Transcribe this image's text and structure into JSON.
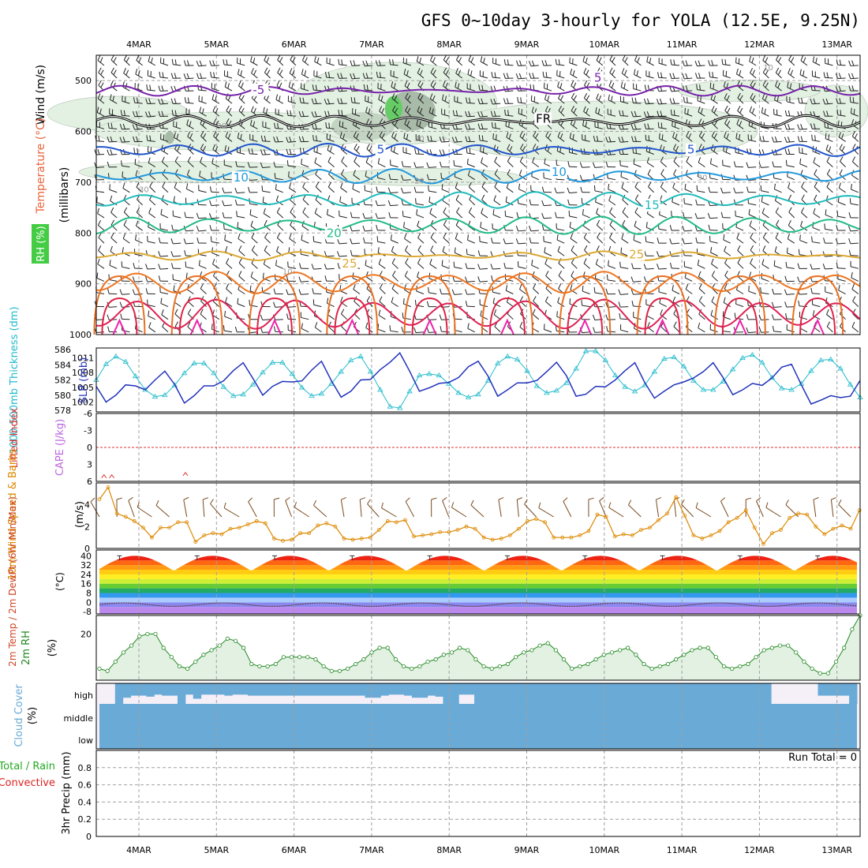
{
  "title": "GFS 0~10day 3-hourly for YOLA (12.5E, 9.25N)",
  "dates": [
    "4MAR",
    "5MAR",
    "6MAR",
    "7MAR",
    "8MAR",
    "9MAR",
    "10MAR",
    "11MAR",
    "12MAR",
    "13MAR"
  ],
  "colors": {
    "wind_label": "#000000",
    "temp_label": "#e8643c",
    "rh_label": "#2db82d",
    "slp": "#2233bb",
    "thickness": "#22bbcc",
    "lifted": "#dd3333",
    "cape": "#bb66dd",
    "wind10": "#dd8800",
    "barb10": "#7a4a1e",
    "rh2m": "#228822",
    "cloud": "#6aaad6",
    "precip_total": "#22aa22",
    "precip_conv": "#dd2222"
  },
  "chart_data": [
    {
      "type": "contour",
      "panel": "upper_air",
      "ylabel": "(millibars)",
      "side_labels": {
        "wind": "Wind (m/s)",
        "temperature": "Temperature (°C)",
        "rh": "RH (%)"
      },
      "yticks": [
        500,
        600,
        700,
        800,
        900,
        1000
      ],
      "ylim": [
        450,
        1000
      ],
      "temperature_contours": [
        {
          "value": -5,
          "label": "-5",
          "color": "#7722aa",
          "base_mb": 520
        },
        {
          "value": 0,
          "label": "FR",
          "color": "#000000",
          "base_mb": 580
        },
        {
          "value": 5,
          "label": "5",
          "color": "#2255cc",
          "base_mb": 637
        },
        {
          "value": 10,
          "label": "10",
          "color": "#2299dd",
          "base_mb": 688
        },
        {
          "value": 15,
          "label": "15",
          "color": "#22bbbb",
          "base_mb": 735
        },
        {
          "value": 20,
          "label": "20",
          "color": "#22bb88",
          "base_mb": 785
        },
        {
          "value": 25,
          "label": "25",
          "color": "#ddaa33",
          "base_mb": 840
        },
        {
          "value": 30,
          "label": "",
          "color": "#ee7722",
          "base_mb": 880
        },
        {
          "value": 35,
          "label": "",
          "color": "#dd2255",
          "base_mb": 935
        }
      ],
      "temperature_labels": [
        {
          "text": "-5",
          "day": 1.55,
          "mb": 518,
          "color": "#7722aa"
        },
        {
          "text": "5",
          "day": 5.95,
          "mb": 494,
          "color": "#7722aa"
        },
        {
          "text": "FR",
          "day": 5.2,
          "mb": 575,
          "color": "#000000"
        },
        {
          "text": "5",
          "day": 3.15,
          "mb": 636,
          "color": "#2255cc"
        },
        {
          "text": "5",
          "day": 7.15,
          "mb": 636,
          "color": "#2255cc"
        },
        {
          "text": "10",
          "day": 1.3,
          "mb": 691,
          "color": "#2299dd"
        },
        {
          "text": "10",
          "day": 5.4,
          "mb": 680,
          "color": "#2299dd"
        },
        {
          "text": "15",
          "day": 6.6,
          "mb": 745,
          "color": "#22bbbb"
        },
        {
          "text": "20",
          "day": 2.5,
          "mb": 800,
          "color": "#22bb88"
        },
        {
          "text": "25",
          "day": 2.7,
          "mb": 860,
          "color": "#ddaa33"
        },
        {
          "text": "25",
          "day": 6.4,
          "mb": 842,
          "color": "#ddaa33"
        }
      ],
      "rh_labels": [
        {
          "text": "30",
          "day": 1.0,
          "mb": 588
        },
        {
          "text": "30",
          "day": 0.0,
          "mb": 713
        },
        {
          "text": "30",
          "day": 3.55,
          "mb": 613
        },
        {
          "text": "20",
          "day": 3.55,
          "mb": 696
        },
        {
          "text": "30",
          "day": 7.2,
          "mb": 690
        },
        {
          "text": "10",
          "day": 1.85,
          "mb": 875
        },
        {
          "text": "10",
          "day": 8.05,
          "mb": 473
        }
      ]
    },
    {
      "type": "line",
      "panel": "slp_thickness",
      "ylabel_left": "1000-500mb Thickness (dm)",
      "ylabel_right": "SLP (mb)",
      "y_ticks_thickness": [
        578,
        580,
        582,
        584,
        586
      ],
      "y_ticks_slp": [
        1002,
        1005,
        1008,
        1011
      ],
      "ylim_thickness": [
        578,
        586
      ],
      "ylim_slp": [
        1000,
        1013
      ],
      "series": [
        {
          "name": "1000-500mb Thickness (dm)",
          "values": [
            582.0,
            584.1,
            585.1,
            584.4,
            582.5,
            580.7,
            579.8,
            580.0,
            581.3,
            582.9,
            584.2,
            584.2,
            582.9,
            581.1,
            579.9,
            580.1,
            581.4,
            583.0,
            584.3,
            584.3,
            582.8,
            581.0,
            579.9,
            580.2,
            581.5,
            583.1,
            584.6,
            585.1,
            583.1,
            580.7,
            578.5,
            578.3,
            580.5,
            582.6,
            582.8,
            582.6,
            581.5,
            580.3,
            579.7,
            580.1,
            581.9,
            584.2,
            585.1,
            584.7,
            583.2,
            581.2,
            580.3,
            580.6,
            581.6,
            583.5,
            585.8,
            585.8,
            584.6,
            582.6,
            581.1,
            580.5,
            581.3,
            583.1,
            584.8,
            585.0,
            583.8,
            581.9,
            580.7,
            580.7,
            581.8,
            583.4,
            584.9,
            585.3,
            584.3,
            582.3,
            580.9,
            580.7,
            581.5,
            583.2,
            584.6,
            584.7,
            583.5,
            581.4,
            579.7
          ]
        },
        {
          "name": "SLP (mb)",
          "values": [
            1005.2,
            1002.0,
            1003.4,
            1005.5,
            1005.3,
            1004.5,
            1006.5,
            1008.3,
            1005.6,
            1001.8,
            1003.3,
            1005.3,
            1005.3,
            1006.3,
            1008.4,
            1010.0,
            1006.8,
            1003.4,
            1005.2,
            1006.2,
            1006.1,
            1006.3,
            1008.5,
            1010.3,
            1006.4,
            1003.0,
            1004.2,
            1006.5,
            1006.6,
            1008.6,
            1010.1,
            1012.0,
            1008.3,
            1004.2,
            1004.9,
            1005.8,
            1006.0,
            1007.0,
            1009.2,
            1010.3,
            1007.3,
            1003.2,
            1004.5,
            1005.9,
            1005.9,
            1006.4,
            1008.2,
            1010.1,
            1007.4,
            1003.2,
            1003.6,
            1005.2,
            1005.1,
            1006.5,
            1008.4,
            1010.0,
            1006.0,
            1002.8,
            1004.2,
            1005.5,
            1006.1,
            1006.9,
            1008.2,
            1010.0,
            1007.0,
            1003.5,
            1004.5,
            1005.8,
            1005.4,
            1006.9,
            1009.1,
            1009.7,
            1005.5,
            1001.6,
            1002.4,
            1003.3,
            1002.9,
            1003.2,
            1006.4
          ]
        }
      ]
    },
    {
      "type": "line",
      "panel": "lifted_cape",
      "ylabel_left": "Lifted Index",
      "ylabel_right": "CAPE (J/kg)",
      "yticks": [
        -6,
        -3,
        0,
        3,
        6
      ],
      "ylim": [
        -6,
        6
      ],
      "zero_line": 0,
      "cape_markers": [
        {
          "day": -0.45,
          "value": 5.4
        },
        {
          "day": -0.35,
          "value": 5.4
        },
        {
          "day": 0.6,
          "value": 5.0
        }
      ]
    },
    {
      "type": "line",
      "panel": "wind10",
      "ylabel_left": "10m Wind Speed & Barbs",
      "ylabel_right": "(m/s)",
      "yticks": [
        0,
        2,
        4
      ],
      "ylim": [
        0,
        6
      ],
      "series": [
        {
          "name": "10m Wind Speed",
          "values": [
            4.5,
            5.6,
            3.2,
            2.9,
            2.5,
            1.9,
            1.0,
            1.9,
            1.9,
            2.4,
            2.4,
            0.6,
            1.2,
            1.4,
            1.3,
            1.8,
            1.9,
            2.2,
            2.5,
            2.3,
            0.9,
            0.7,
            0.8,
            1.4,
            1.4,
            2.1,
            2.3,
            2.0,
            0.9,
            0.8,
            0.9,
            1.0,
            1.7,
            2.5,
            2.4,
            2.6,
            1.1,
            1.2,
            1.3,
            1.5,
            1.5,
            1.7,
            2.0,
            1.8,
            1.0,
            0.8,
            0.9,
            1.2,
            1.8,
            2.5,
            2.7,
            2.4,
            1.0,
            1.0,
            1.0,
            1.2,
            1.6,
            3.1,
            2.9,
            1.1,
            1.3,
            1.2,
            1.7,
            1.9,
            2.6,
            3.2,
            4.7,
            3.0,
            1.2,
            0.9,
            1.2,
            1.6,
            2.4,
            2.8,
            3.5,
            1.9,
            0.4,
            1.4,
            1.7,
            2.8,
            3.2,
            3.1,
            2.0,
            1.3,
            1.8,
            2.1,
            1.8,
            3.5
          ]
        }
      ]
    },
    {
      "type": "area",
      "panel": "temp2m",
      "ylabel": "2m Temp / 2m DewPt (6hr Min/Max)",
      "yunit": "(°C)",
      "yticks": [
        -8,
        0,
        8,
        16,
        24,
        32,
        40
      ],
      "ylim": [
        -10,
        45
      ],
      "temperature_daily": {
        "min": 27,
        "max": 40
      },
      "dewpoint_base": -2,
      "color_bands": [
        {
          "from": -10,
          "to": -4,
          "color": "#bb88ee"
        },
        {
          "from": -4,
          "to": 0,
          "color": "#8888ee"
        },
        {
          "from": 0,
          "to": 4,
          "color": "#aaccff"
        },
        {
          "from": 4,
          "to": 8,
          "color": "#3399ee"
        },
        {
          "from": 8,
          "to": 12,
          "color": "#22aa66"
        },
        {
          "from": 12,
          "to": 16,
          "color": "#66cc33"
        },
        {
          "from": 16,
          "to": 20,
          "color": "#ccee33"
        },
        {
          "from": 20,
          "to": 24,
          "color": "#ffee22"
        },
        {
          "from": 24,
          "to": 28,
          "color": "#ffcc11"
        },
        {
          "from": 28,
          "to": 32,
          "color": "#ff9911"
        },
        {
          "from": 32,
          "to": 36,
          "color": "#ff6611"
        },
        {
          "from": 36,
          "to": 40,
          "color": "#ee2211"
        },
        {
          "from": 40,
          "to": 45,
          "color": "#aa1111"
        }
      ]
    },
    {
      "type": "line",
      "panel": "rh2m",
      "ylabel": "2m RH",
      "yunit": "(%)",
      "yticks": [
        20
      ],
      "ylim": [
        0,
        28
      ],
      "series": [
        {
          "name": "2m RH",
          "values": [
            5,
            4,
            8,
            12,
            15,
            19,
            20,
            20,
            14,
            10,
            6,
            5,
            8,
            11,
            13,
            15,
            18,
            17,
            14,
            7,
            6,
            6,
            7,
            10,
            10,
            10,
            10,
            9,
            6,
            4,
            4,
            5,
            7,
            9,
            12,
            14,
            14,
            9,
            6,
            5,
            6,
            8,
            9,
            11,
            12,
            14,
            13,
            9,
            6,
            5,
            6,
            7,
            10,
            12,
            13,
            15,
            16,
            13,
            9,
            5,
            6,
            7,
            9,
            11,
            12,
            13,
            14,
            11,
            7,
            5,
            6,
            7,
            9,
            11,
            13,
            14,
            14,
            10,
            6,
            5,
            6,
            7,
            10,
            13,
            14,
            15,
            15,
            12,
            8,
            5,
            3,
            3,
            8,
            14,
            22,
            28
          ]
        }
      ]
    },
    {
      "type": "area",
      "panel": "cloud_cover",
      "ylabel": "Cloud Cover",
      "yunit": "(%)",
      "levels": [
        "high",
        "middle",
        "low"
      ],
      "high_cover_pct": [
        0,
        0,
        100,
        70,
        60,
        60,
        65,
        55,
        60,
        60,
        100,
        55,
        75,
        55,
        55,
        55,
        60,
        55,
        55,
        60,
        60,
        60,
        60,
        60,
        60,
        60,
        60,
        60,
        60,
        60,
        60,
        60,
        60,
        60,
        70,
        70,
        60,
        55,
        55,
        60,
        70,
        70,
        60,
        65,
        100,
        100,
        55,
        55,
        100,
        100,
        100,
        100,
        100,
        100,
        100,
        100,
        100,
        100,
        100,
        100,
        100,
        100,
        100,
        100,
        100,
        100,
        100,
        100,
        100,
        100,
        100,
        100,
        100,
        100,
        100,
        100,
        100,
        100,
        100,
        100,
        100,
        100,
        100,
        100,
        100,
        100,
        0,
        0,
        0,
        0,
        0,
        0,
        60,
        60,
        60,
        60,
        100
      ],
      "middle_cover_pct": 100,
      "low_cover_pct": 100
    },
    {
      "type": "line",
      "panel": "precip",
      "ylabel_left": "Total / Rain",
      "ylabel_left2": "Convective",
      "ylabel": "3hr Precip (mm)",
      "yticks": [
        0,
        0.2,
        0.4,
        0.6,
        0.8
      ],
      "ylim": [
        0,
        1.0
      ],
      "values": [],
      "annotation": "Run Total = 0"
    }
  ]
}
